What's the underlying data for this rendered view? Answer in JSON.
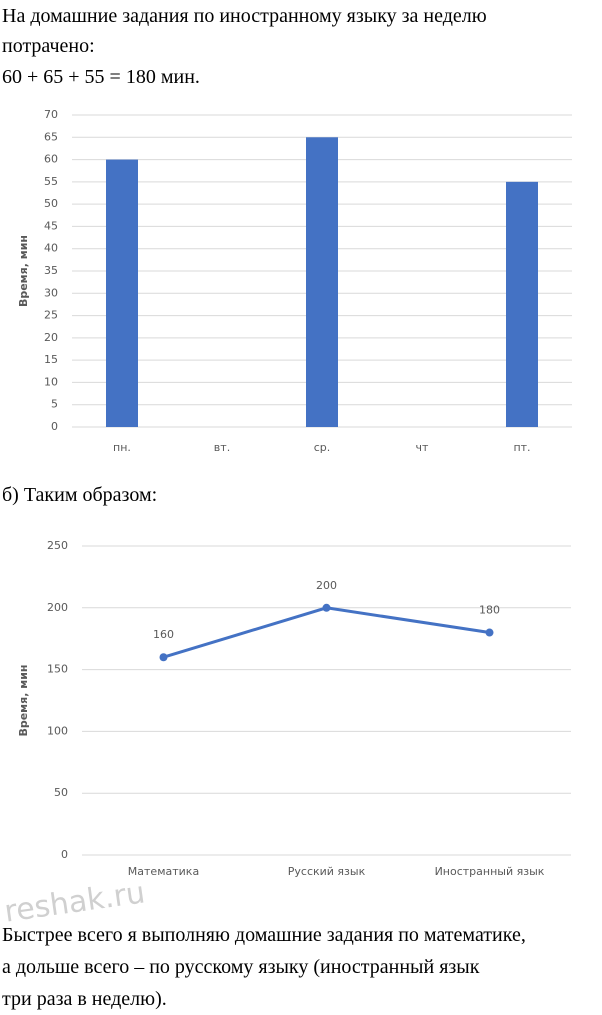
{
  "paragraphs": [
    "На домашние задания по иностранному языку за неделю",
    "потрачено:",
    "60 + 65 + 55 = 180 мин.",
    "б) Таким образом:",
    "Быстрее всего я выполняю домашние задания по математике,",
    "а дольше всего – по русскому языку (иностранный язык",
    "три раза в неделю)."
  ],
  "watermark": "reshak.ru",
  "chart_data": [
    {
      "type": "bar",
      "y_label": "Время, мин",
      "categories": [
        "пн.",
        "вт.",
        "ср.",
        "чт",
        "пт."
      ],
      "values": [
        60,
        null,
        65,
        null,
        55
      ],
      "color": "#4472c4",
      "ylim": [
        0,
        70
      ],
      "yticks": [
        0,
        5,
        10,
        15,
        20,
        25,
        30,
        35,
        40,
        45,
        50,
        55,
        60,
        65,
        70
      ],
      "grid": true
    },
    {
      "type": "line",
      "y_label": "Время, мин",
      "categories": [
        "Математика",
        "Русский язык",
        "Иностранный язык"
      ],
      "values": [
        160,
        200,
        180
      ],
      "color": "#4472c4",
      "data_labels": true,
      "ylim": [
        0,
        250
      ],
      "yticks": [
        0,
        50,
        100,
        150,
        200,
        250
      ],
      "grid": true
    }
  ]
}
